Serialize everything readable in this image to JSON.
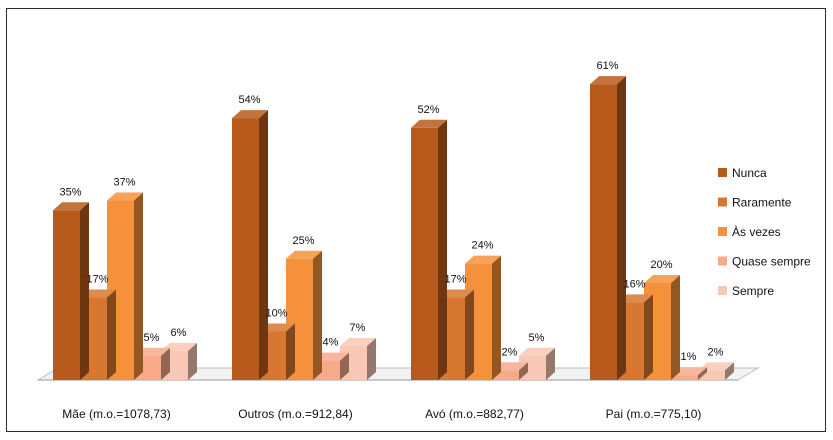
{
  "chart_data": {
    "type": "bar",
    "categories": [
      "Mãe  (m.o.=1078,73)",
      "Outros (m.o.=912,84)",
      "Avó  (m.o.=882,77)",
      "Pai (m.o.=775,10)"
    ],
    "series": [
      {
        "name": "Nunca",
        "values": [
          35,
          54,
          52,
          61
        ],
        "labels": [
          "35%",
          "54%",
          "52%",
          "61%"
        ],
        "color": "#b85a1c"
      },
      {
        "name": "Raramente",
        "values": [
          17,
          10,
          17,
          16
        ],
        "labels": [
          "17%",
          "10%",
          "17%",
          "16%"
        ],
        "color": "#d8772f"
      },
      {
        "name": "Às vezes",
        "values": [
          37,
          25,
          24,
          20
        ],
        "labels": [
          "37%",
          "25%",
          "24%",
          "20%"
        ],
        "color": "#f4913a"
      },
      {
        "name": "Quase sempre",
        "values": [
          5,
          4,
          2,
          1
        ],
        "labels": [
          "5%",
          "4%",
          "2%",
          "1%"
        ],
        "color": "#f7a98a"
      },
      {
        "name": "Sempre",
        "values": [
          6,
          7,
          5,
          2
        ],
        "labels": [
          "6%",
          "7%",
          "5%",
          "2%"
        ],
        "color": "#f9c8b4"
      }
    ],
    "ylim": [
      0,
      65
    ],
    "grid": false,
    "legend_position": "right",
    "style": "3d-columns"
  }
}
